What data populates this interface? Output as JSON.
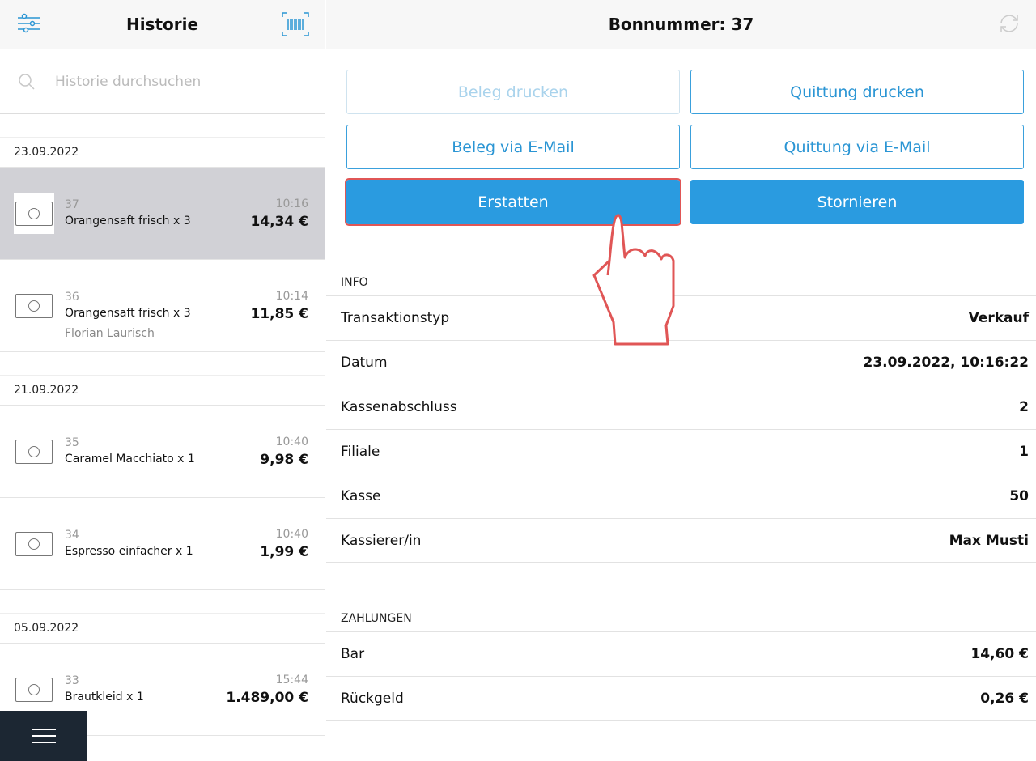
{
  "left": {
    "title": "Historie",
    "search_placeholder": "Historie durchsuchen",
    "groups": [
      {
        "date": "23.09.2022",
        "items": [
          {
            "number": "37",
            "name": "Orangensaft frisch x 3",
            "time": "10:16",
            "price": "14,34 €",
            "selected": true
          },
          {
            "number": "36",
            "name": "Orangensaft frisch x 3",
            "sub": "Florian Laurisch",
            "time": "10:14",
            "price": "11,85 €"
          }
        ]
      },
      {
        "date": "21.09.2022",
        "items": [
          {
            "number": "35",
            "name": "Caramel Macchiato x 1",
            "time": "10:40",
            "price": "9,98 €"
          },
          {
            "number": "34",
            "name": "Espresso einfacher x 1",
            "time": "10:40",
            "price": "1,99 €"
          }
        ]
      },
      {
        "date": "05.09.2022",
        "items": [
          {
            "number": "33",
            "name": "Brautkleid x 1",
            "time": "15:44",
            "price": "1.489,00 €"
          }
        ]
      }
    ]
  },
  "right": {
    "title": "Bonnummer: 37",
    "buttons": {
      "beleg_drucken": "Beleg drucken",
      "quittung_drucken": "Quittung drucken",
      "beleg_email": "Beleg via E-Mail",
      "quittung_email": "Quittung via E-Mail",
      "erstatten": "Erstatten",
      "stornieren": "Stornieren"
    },
    "info_label": "INFO",
    "info": [
      {
        "k": "Transaktionstyp",
        "v": "Verkauf"
      },
      {
        "k": "Datum",
        "v": "23.09.2022, 10:16:22"
      },
      {
        "k": "Kassenabschluss",
        "v": "2"
      },
      {
        "k": "Filiale",
        "v": "1"
      },
      {
        "k": "Kasse",
        "v": "50"
      },
      {
        "k": "Kassierer/in",
        "v": "Max Musti"
      }
    ],
    "payments_label": "ZAHLUNGEN",
    "payments": [
      {
        "k": "Bar",
        "v": "14,60 €"
      },
      {
        "k": "Rückgeld",
        "v": "0,26 €"
      }
    ]
  },
  "colors": {
    "accent": "#2a9be0",
    "highlight": "#e05656",
    "menu_bg": "#1c2733"
  }
}
